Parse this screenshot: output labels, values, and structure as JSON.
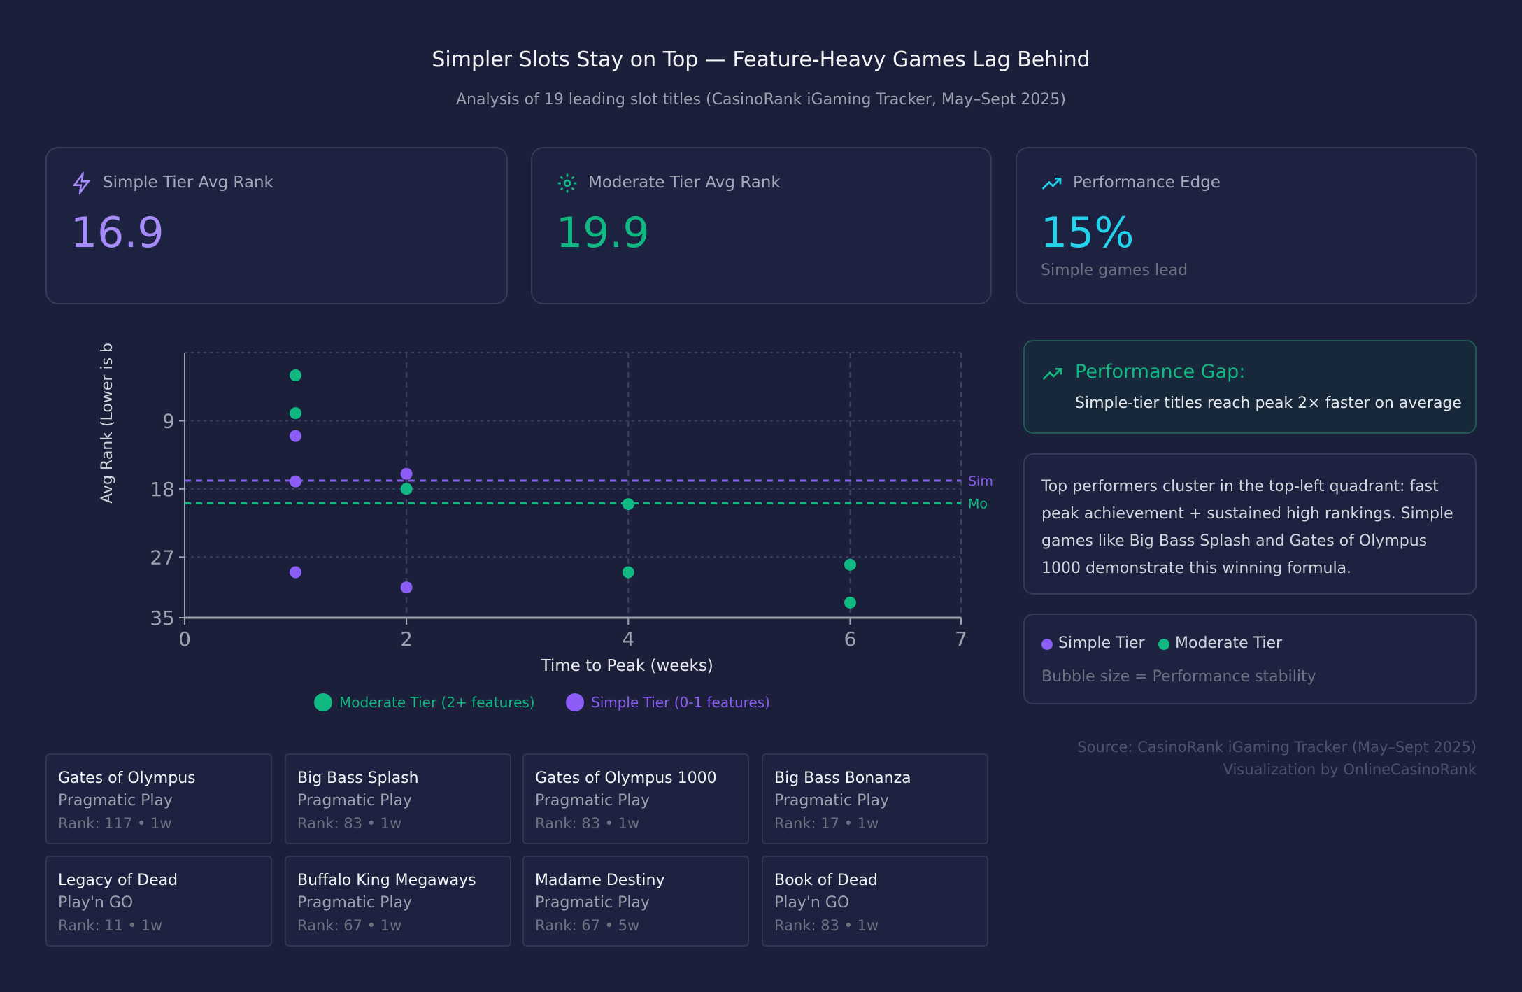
{
  "title": "Simpler Slots Stay on Top — Feature-Heavy Games Lag Behind",
  "subtitle": "Analysis of 19 leading slot titles (CasinoRank iGaming Tracker, May–Sept 2025)",
  "kpis": [
    {
      "label": "Simple Tier Avg Rank",
      "value": "16.9",
      "icon": "lightning-icon",
      "color": "#a78bfa"
    },
    {
      "label": "Moderate Tier Avg Rank",
      "value": "19.9",
      "icon": "gear-icon",
      "color": "#10b981"
    },
    {
      "label": "Performance Edge",
      "value": "15%",
      "sub": "Simple games lead",
      "icon": "trending-up-icon",
      "color": "#22d3ee"
    }
  ],
  "gap": {
    "title": "Performance Gap:",
    "text": "Simple-tier titles reach peak 2× faster on average"
  },
  "insight": "Top performers cluster in the top-left quadrant: fast peak achievement + sustained high rankings. Simple games like Big Bass Splash and Gates of Olympus 1000 demonstrate this winning formula.",
  "legend_panel": {
    "simple": "Simple Tier",
    "moderate": "Moderate Tier",
    "note": "Bubble size = Performance stability"
  },
  "source": [
    "Source: CasinoRank iGaming Tracker (May–Sept 2025)",
    "Visualization by OnlineCasinoRank"
  ],
  "games": [
    {
      "name": "Gates of Olympus",
      "provider": "Pragmatic Play",
      "meta": "Rank: 117 • 1w"
    },
    {
      "name": "Big Bass Splash",
      "provider": "Pragmatic Play",
      "meta": "Rank: 83 • 1w"
    },
    {
      "name": "Gates of Olympus 1000",
      "provider": "Pragmatic Play",
      "meta": "Rank: 83 • 1w"
    },
    {
      "name": "Big Bass Bonanza",
      "provider": "Pragmatic Play",
      "meta": "Rank: 17 • 1w"
    },
    {
      "name": "Legacy of Dead",
      "provider": "Play'n GO",
      "meta": "Rank: 11 • 1w"
    },
    {
      "name": "Buffalo King Megaways",
      "provider": "Pragmatic Play",
      "meta": "Rank: 67 • 1w"
    },
    {
      "name": "Madame Destiny",
      "provider": "Pragmatic Play",
      "meta": "Rank: 67 • 5w"
    },
    {
      "name": "Book of Dead",
      "provider": "Play'n GO",
      "meta": "Rank: 83 • 1w"
    }
  ],
  "chart_data": {
    "type": "scatter",
    "xlabel": "Time to Peak (weeks)",
    "ylabel": "Avg Rank (Lower is b",
    "xlim": [
      0,
      7
    ],
    "ylim": [
      35,
      0
    ],
    "y_reversed": true,
    "xticks": [
      0,
      2,
      4,
      6,
      7
    ],
    "yticks": [
      9,
      18,
      27,
      35
    ],
    "series": [
      {
        "name": "Moderate Tier (2+ features)",
        "color": "#10b981",
        "points": [
          [
            1,
            3
          ],
          [
            1,
            8
          ],
          [
            2,
            18
          ],
          [
            4,
            20
          ],
          [
            4,
            29
          ],
          [
            6,
            28
          ],
          [
            6,
            33
          ]
        ]
      },
      {
        "name": "Simple Tier (0-1 features)",
        "color": "#8b5cf6",
        "points": [
          [
            1,
            11
          ],
          [
            1,
            17
          ],
          [
            1,
            29
          ],
          [
            2,
            16
          ],
          [
            2,
            31
          ]
        ]
      }
    ],
    "reference_lines": [
      {
        "label": "Sim",
        "value": 16.9,
        "color": "#8b5cf6"
      },
      {
        "label": "Mo",
        "value": 19.9,
        "color": "#10b981"
      }
    ],
    "legend": "bottom"
  }
}
